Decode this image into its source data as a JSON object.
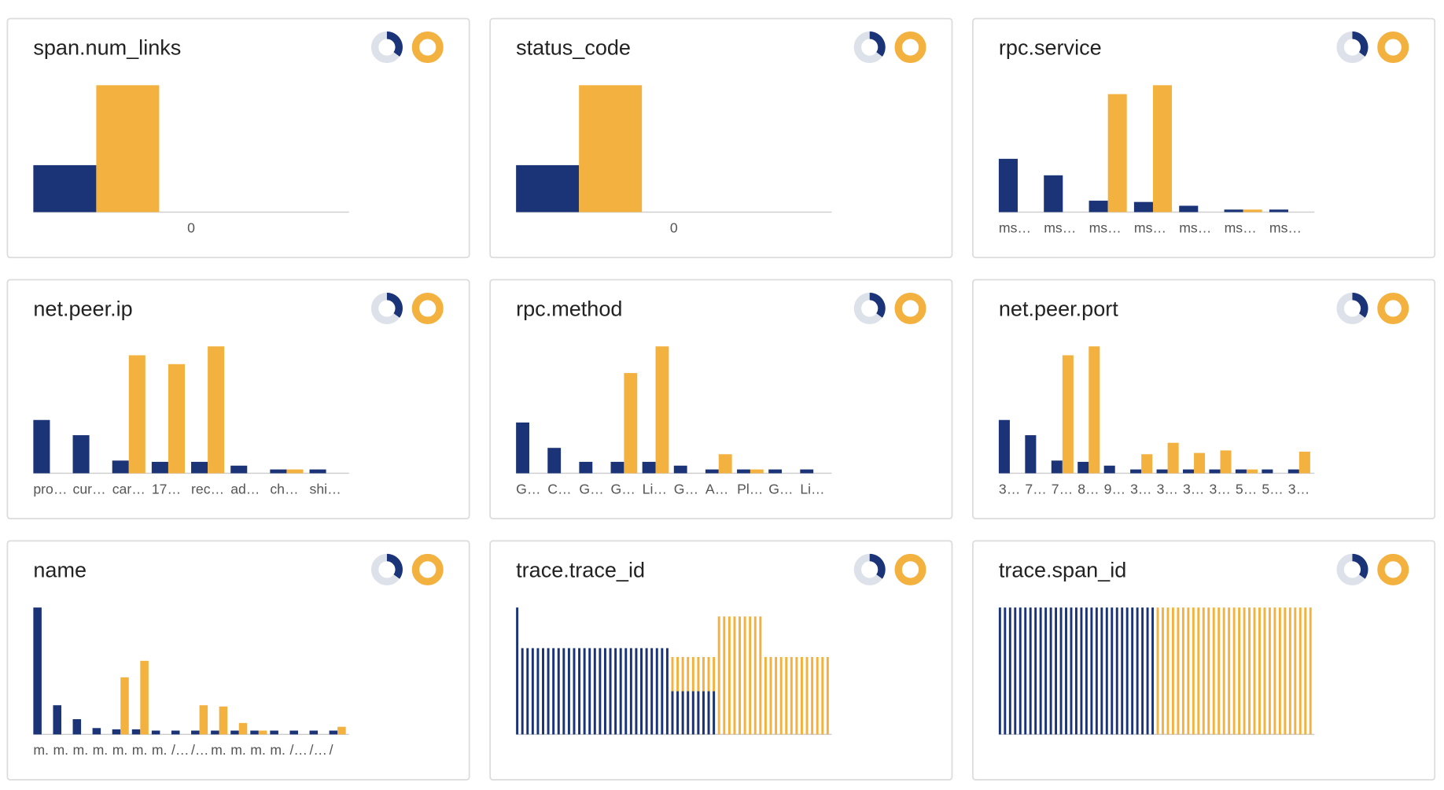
{
  "chart_data": [
    {
      "type": "bar",
      "title": "span.num_links",
      "barmode": "group",
      "ylim": [
        0,
        100
      ],
      "categories": [
        "0"
      ],
      "series": [
        {
          "color": "#1b3478",
          "values": [
            37
          ]
        },
        {
          "color": "#f3b240",
          "values": [
            100
          ]
        }
      ]
    },
    {
      "type": "bar",
      "title": "status_code",
      "barmode": "group",
      "ylim": [
        0,
        100
      ],
      "categories": [
        "0"
      ],
      "series": [
        {
          "color": "#1b3478",
          "values": [
            37
          ]
        },
        {
          "color": "#f3b240",
          "values": [
            100
          ]
        }
      ]
    },
    {
      "type": "bar",
      "title": "rpc.service",
      "barmode": "group",
      "ylim": [
        0,
        100
      ],
      "categories": [
        "ms…",
        "ms…",
        "ms…",
        "ms…",
        "ms…",
        "ms…",
        "ms…"
      ],
      "series": [
        {
          "color": "#1b3478",
          "values": [
            42,
            29,
            9,
            8,
            5,
            2,
            2
          ]
        },
        {
          "color": "#f3b240",
          "values": [
            0,
            0,
            93,
            100,
            0,
            2,
            0
          ]
        }
      ]
    },
    {
      "type": "bar",
      "title": "net.peer.ip",
      "barmode": "group",
      "ylim": [
        0,
        100
      ],
      "categories": [
        "pro…",
        "cur…",
        "car…",
        "17…",
        "rec…",
        "ad…",
        "ch…",
        "shi…"
      ],
      "series": [
        {
          "color": "#1b3478",
          "values": [
            42,
            30,
            10,
            9,
            9,
            6,
            3,
            3
          ]
        },
        {
          "color": "#f3b240",
          "values": [
            0,
            0,
            93,
            86,
            100,
            0,
            3,
            0
          ]
        }
      ]
    },
    {
      "type": "bar",
      "title": "rpc.method",
      "barmode": "group",
      "ylim": [
        0,
        100
      ],
      "categories": [
        "G…",
        "C…",
        "G…",
        "G…",
        "Li…",
        "G…",
        "A…",
        "Pl…",
        "G…",
        "Li…"
      ],
      "series": [
        {
          "color": "#1b3478",
          "values": [
            40,
            20,
            9,
            9,
            9,
            6,
            3,
            3,
            3,
            3
          ]
        },
        {
          "color": "#f3b240",
          "values": [
            0,
            0,
            0,
            79,
            100,
            0,
            15,
            3,
            0,
            0
          ]
        }
      ]
    },
    {
      "type": "bar",
      "title": "net.peer.port",
      "barmode": "group",
      "ylim": [
        0,
        100
      ],
      "categories": [
        "3…",
        "7…",
        "7…",
        "8…",
        "9…",
        "3…",
        "3…",
        "3…",
        "3…",
        "5…",
        "5…",
        "3…"
      ],
      "series": [
        {
          "color": "#1b3478",
          "values": [
            42,
            30,
            10,
            9,
            6,
            3,
            3,
            3,
            3,
            3,
            3,
            3
          ]
        },
        {
          "color": "#f3b240",
          "values": [
            0,
            0,
            93,
            100,
            0,
            15,
            24,
            16,
            18,
            3,
            0,
            17
          ]
        }
      ]
    },
    {
      "type": "bar",
      "title": "name",
      "barmode": "group",
      "ylim": [
        0,
        100
      ],
      "categories": [
        "m.",
        "m.",
        "m.",
        "m.",
        "m.",
        "m.",
        "m.",
        "/…",
        "/…",
        "m.",
        "m.",
        "m.",
        "m.",
        "/…",
        "/…",
        "/"
      ],
      "series": [
        {
          "color": "#1b3478",
          "values": [
            100,
            23,
            12,
            5,
            4,
            4,
            3,
            3,
            3,
            3,
            3,
            3,
            3,
            3,
            3,
            3
          ]
        },
        {
          "color": "#f3b240",
          "values": [
            0,
            0,
            0,
            0,
            45,
            58,
            0,
            0,
            23,
            22,
            9,
            3,
            0,
            0,
            0,
            6
          ]
        }
      ]
    },
    {
      "type": "bar",
      "title": "trace.trace_id",
      "barmode": "overlay",
      "ylim": [
        0,
        100
      ],
      "categories": [
        null,
        null,
        null,
        null,
        null,
        null,
        null,
        null,
        null,
        null,
        null,
        null,
        null,
        null,
        null,
        null,
        null,
        null,
        null,
        null,
        null,
        null,
        null,
        null,
        null,
        null,
        null,
        null,
        null,
        null,
        null,
        null,
        null,
        null,
        null,
        null,
        null,
        null,
        null,
        null,
        null,
        null,
        null,
        null,
        null,
        null,
        null,
        null,
        null,
        null,
        null,
        null,
        null,
        null,
        null,
        null,
        null,
        null,
        null,
        null,
        null
      ],
      "series": [
        {
          "color": "#1b3478",
          "values": [
            100,
            68,
            68,
            68,
            68,
            68,
            68,
            68,
            68,
            68,
            68,
            68,
            68,
            68,
            68,
            68,
            68,
            68,
            68,
            68,
            68,
            68,
            68,
            68,
            68,
            68,
            68,
            68,
            68,
            68,
            34,
            34,
            34,
            34,
            34,
            34,
            34,
            34,
            34,
            0,
            0,
            0,
            0,
            0,
            0,
            0,
            0,
            0,
            0,
            0,
            0,
            0,
            0,
            0,
            0,
            0,
            0,
            0,
            0,
            0,
            0
          ]
        },
        {
          "color": "#f3b240",
          "values": [
            0,
            0,
            0,
            0,
            0,
            0,
            0,
            0,
            0,
            0,
            0,
            0,
            0,
            0,
            0,
            0,
            0,
            0,
            0,
            0,
            0,
            0,
            0,
            0,
            0,
            0,
            0,
            0,
            0,
            0,
            61,
            61,
            61,
            61,
            61,
            61,
            61,
            61,
            61,
            93,
            93,
            93,
            93,
            93,
            93,
            93,
            93,
            93,
            61,
            61,
            61,
            61,
            61,
            61,
            61,
            61,
            61,
            61,
            61,
            61,
            61
          ]
        }
      ]
    },
    {
      "type": "bar",
      "title": "trace.span_id",
      "barmode": "overlay",
      "ylim": [
        0,
        100
      ],
      "categories": [
        null,
        null,
        null,
        null,
        null,
        null,
        null,
        null,
        null,
        null,
        null,
        null,
        null,
        null,
        null,
        null,
        null,
        null,
        null,
        null,
        null,
        null,
        null,
        null,
        null,
        null,
        null,
        null,
        null,
        null,
        null,
        null,
        null,
        null,
        null,
        null,
        null,
        null,
        null,
        null,
        null,
        null,
        null,
        null,
        null,
        null,
        null,
        null,
        null,
        null,
        null,
        null,
        null,
        null,
        null,
        null,
        null,
        null,
        null,
        null,
        null,
        null
      ],
      "series": [
        {
          "color": "#1b3478",
          "values": [
            100,
            100,
            100,
            100,
            100,
            100,
            100,
            100,
            100,
            100,
            100,
            100,
            100,
            100,
            100,
            100,
            100,
            100,
            100,
            100,
            100,
            100,
            100,
            100,
            100,
            100,
            100,
            100,
            100,
            100,
            100,
            0,
            0,
            0,
            0,
            0,
            0,
            0,
            0,
            0,
            0,
            0,
            0,
            0,
            0,
            0,
            0,
            0,
            0,
            0,
            0,
            0,
            0,
            0,
            0,
            0,
            0,
            0,
            0,
            0,
            0,
            0
          ]
        },
        {
          "color": "#f3b240",
          "values": [
            0,
            0,
            0,
            0,
            0,
            0,
            0,
            0,
            0,
            0,
            0,
            0,
            0,
            0,
            0,
            0,
            0,
            0,
            0,
            0,
            0,
            0,
            0,
            0,
            0,
            0,
            0,
            0,
            0,
            0,
            0,
            100,
            100,
            100,
            100,
            100,
            100,
            100,
            100,
            100,
            100,
            100,
            100,
            100,
            100,
            100,
            100,
            100,
            100,
            100,
            100,
            100,
            100,
            100,
            100,
            100,
            100,
            100,
            100,
            100,
            100,
            100
          ]
        }
      ]
    }
  ]
}
